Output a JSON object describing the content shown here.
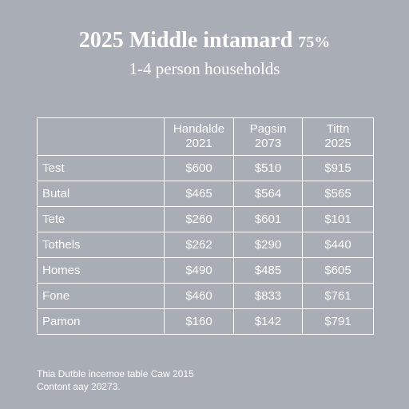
{
  "title": {
    "main": "2025 Middle intamard",
    "percent": "75%"
  },
  "subtitle": "1-4 person households",
  "table": {
    "columns": [
      {
        "line1": "",
        "line2": ""
      },
      {
        "line1": "Handalde",
        "line2": "2021"
      },
      {
        "line1": "Pagsin",
        "line2": "2073"
      },
      {
        "line1": "Tittn",
        "line2": "2025"
      }
    ],
    "rows": [
      {
        "label": "Test",
        "values": [
          "$600",
          "$510",
          "$915"
        ]
      },
      {
        "label": "Butal",
        "values": [
          "$465",
          "$564",
          "$565"
        ]
      },
      {
        "label": "Tete",
        "values": [
          "$260",
          "$601",
          "$101"
        ]
      },
      {
        "label": "Tothels",
        "values": [
          "$262",
          "$290",
          "$440"
        ]
      },
      {
        "label": "Homes",
        "values": [
          "$490",
          "$485",
          "$605"
        ]
      },
      {
        "label": "Fone",
        "values": [
          "$460",
          "$833",
          "$761"
        ]
      },
      {
        "label": "Pamon",
        "values": [
          "$160",
          "$142",
          "$791"
        ]
      }
    ]
  },
  "footer": {
    "line1": "Thia Dutble incemoe table Caw 2015",
    "line2": "Contont aay 20273."
  }
}
